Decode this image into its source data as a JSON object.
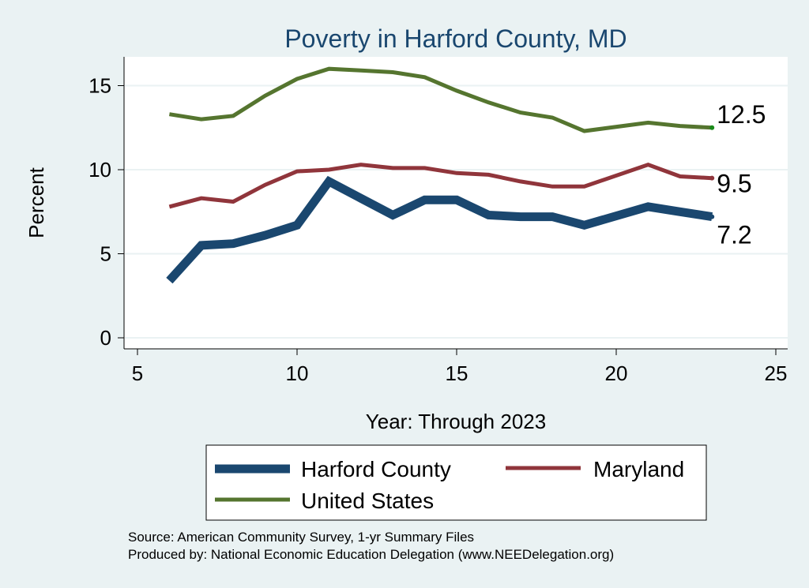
{
  "chart_data": {
    "type": "line",
    "title": "Poverty in Harford County, MD",
    "xlabel": "Year: Through 2023",
    "ylabel": "Percent",
    "xlim": [
      5,
      25
    ],
    "ylim": [
      0,
      16.7
    ],
    "x_ticks": [
      5,
      10,
      15,
      20,
      25
    ],
    "y_ticks": [
      0,
      5,
      10,
      15
    ],
    "grid": true,
    "legend": "bottom",
    "x": [
      6,
      7,
      8,
      9,
      10,
      11,
      12,
      13,
      14,
      15,
      16,
      17,
      18,
      19,
      21,
      22,
      23
    ],
    "series": [
      {
        "name": "Harford County",
        "color": "#1A476F",
        "values": [
          3.4,
          5.5,
          5.6,
          6.1,
          6.7,
          9.3,
          8.3,
          7.3,
          8.2,
          8.2,
          7.3,
          7.2,
          7.2,
          6.7,
          7.8,
          7.5,
          7.2
        ],
        "end_label": "7.2"
      },
      {
        "name": "Maryland",
        "color": "#90353B",
        "values": [
          7.8,
          8.3,
          8.1,
          9.1,
          9.9,
          10.0,
          10.3,
          10.1,
          10.1,
          9.8,
          9.7,
          9.3,
          9.0,
          9.0,
          10.3,
          9.6,
          9.5
        ],
        "end_label": "9.5"
      },
      {
        "name": "United States",
        "color": "#55752F",
        "values": [
          13.3,
          13.0,
          13.2,
          14.4,
          15.4,
          16.0,
          15.9,
          15.8,
          15.5,
          14.7,
          14.0,
          13.4,
          13.1,
          12.3,
          12.8,
          12.6,
          12.5
        ],
        "end_label": "12.5"
      }
    ]
  },
  "legend_items": [
    "Harford County",
    "Maryland",
    "United States"
  ],
  "source_line": "Source: American Community Survey, 1-yr Summary Files",
  "produced_line": "Produced by: National Economic Education Delegation (www.NEEDelegation.org)"
}
